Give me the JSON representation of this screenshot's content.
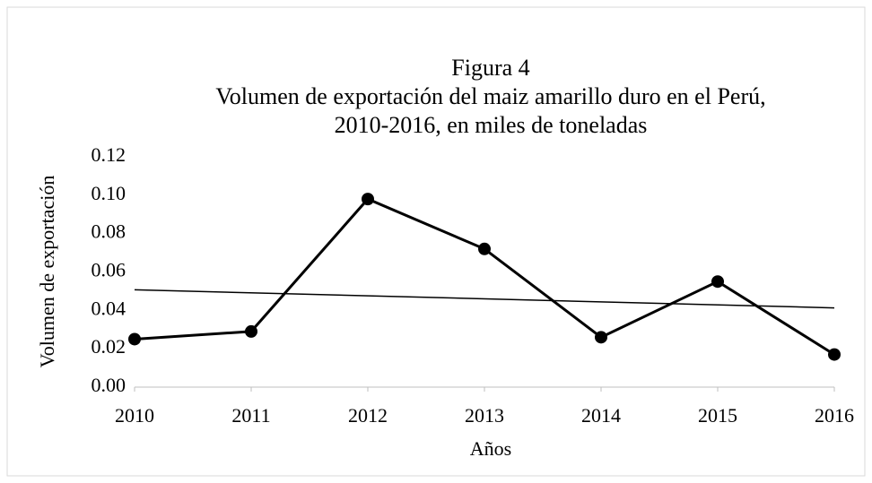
{
  "chart_data": {
    "type": "line",
    "title": [
      "Figura 4",
      "Volumen de exportación del maiz amarillo duro en el Perú,",
      "2010-2016, en miles de toneladas"
    ],
    "x": [
      2010,
      2011,
      2012,
      2013,
      2014,
      2015,
      2016
    ],
    "series": [
      {
        "name": "Volumen de exportación",
        "color": "#000000",
        "values": [
          0.025,
          0.029,
          0.098,
          0.072,
          0.026,
          0.055,
          0.017
        ]
      }
    ],
    "xlim": [
      2010,
      2016
    ],
    "xticks": [
      2010,
      2011,
      2012,
      2013,
      2014,
      2015,
      2016
    ],
    "ylim": [
      0,
      0.12
    ],
    "yticks": [
      {
        "value": 0,
        "label": "0.00"
      },
      0.02,
      0.04,
      0.06,
      0.08,
      {
        "value": 0.1,
        "label": "0.10"
      },
      0.12
    ],
    "xlabel": "Años",
    "ylabel": "Volumen de exportación",
    "trendline": "linear",
    "grid": false
  }
}
